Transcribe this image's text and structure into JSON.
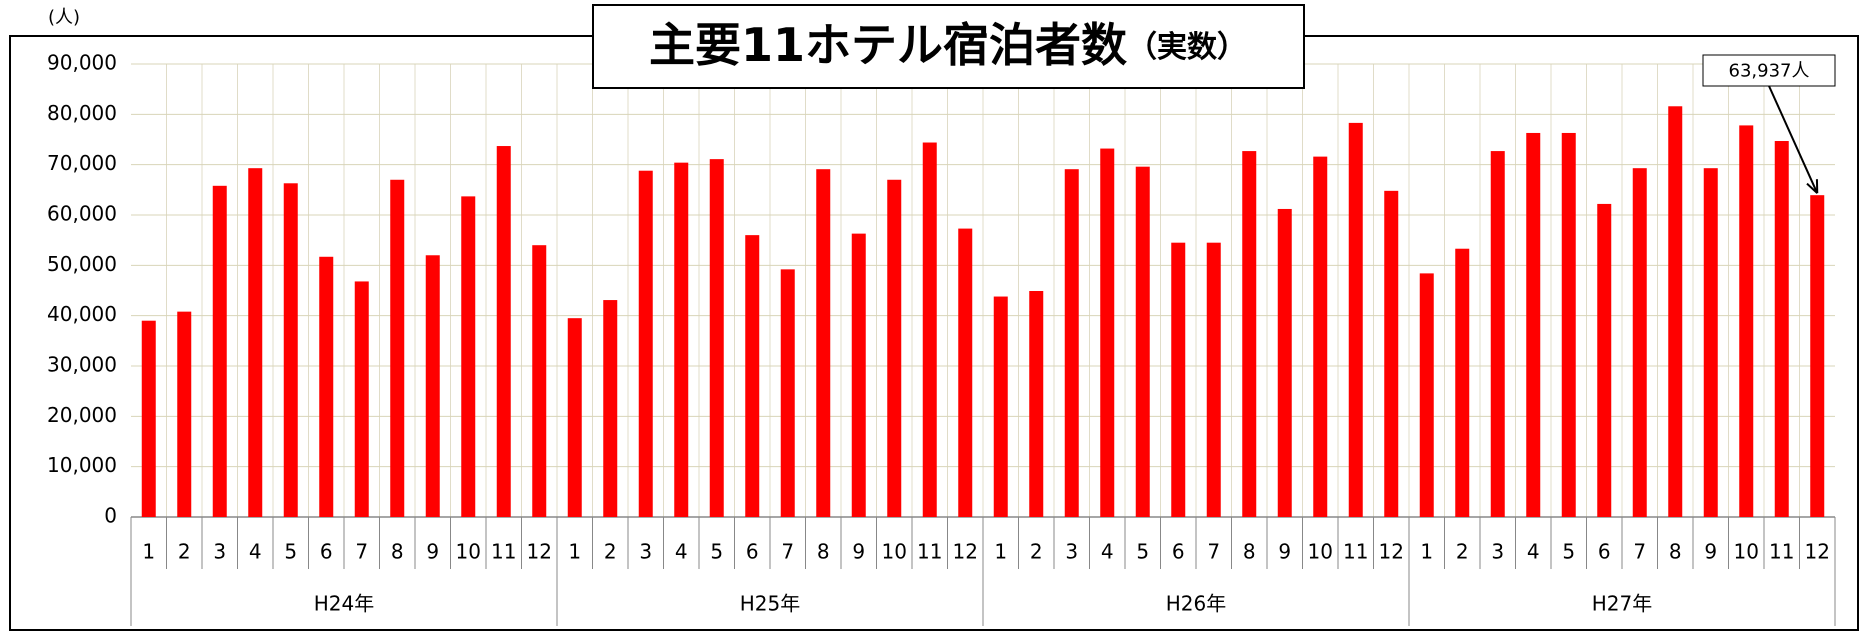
{
  "chart_data": {
    "type": "bar",
    "title": "主要11ホテル宿泊者数",
    "subtitle": "（実数）",
    "y_axis_label": "(人)",
    "categories": [
      "1",
      "2",
      "3",
      "4",
      "5",
      "6",
      "7",
      "8",
      "9",
      "10",
      "11",
      "12",
      "1",
      "2",
      "3",
      "4",
      "5",
      "6",
      "7",
      "8",
      "9",
      "10",
      "11",
      "12",
      "1",
      "2",
      "3",
      "4",
      "5",
      "6",
      "7",
      "8",
      "9",
      "10",
      "11",
      "12",
      "1",
      "2",
      "3",
      "4",
      "5",
      "6",
      "7",
      "8",
      "9",
      "10",
      "11",
      "12"
    ],
    "groups": [
      "H24年",
      "H25年",
      "H26年",
      "H27年"
    ],
    "values": [
      39000,
      40800,
      65800,
      69300,
      66300,
      51700,
      46800,
      67000,
      52000,
      63700,
      73700,
      54000,
      39500,
      43100,
      68800,
      70400,
      71100,
      56000,
      49200,
      69100,
      56300,
      67000,
      74400,
      57300,
      43800,
      44900,
      69100,
      73200,
      69600,
      54500,
      54500,
      72700,
      61200,
      71600,
      78300,
      64800,
      48400,
      53300,
      72700,
      76300,
      76300,
      62200,
      69300,
      81600,
      69300,
      77800,
      74700,
      63937
    ],
    "color": "#ff0000",
    "ylim": [
      0,
      90000
    ],
    "yticks": [
      0,
      {
        "value": 10000,
        "label": "10,000"
      },
      {
        "value": 20000,
        "label": "20,000"
      },
      {
        "value": 30000,
        "label": "30,000"
      },
      {
        "value": 40000,
        "label": "40,000"
      },
      {
        "value": 50000,
        "label": "50,000"
      },
      {
        "value": 60000,
        "label": "60,000"
      },
      {
        "value": 70000,
        "label": "70,000"
      },
      {
        "value": 80000,
        "label": "80,000"
      },
      {
        "value": 90000,
        "label": "90,000"
      }
    ],
    "grid": true,
    "annotation": {
      "text": "63,937人",
      "index": 47
    }
  }
}
